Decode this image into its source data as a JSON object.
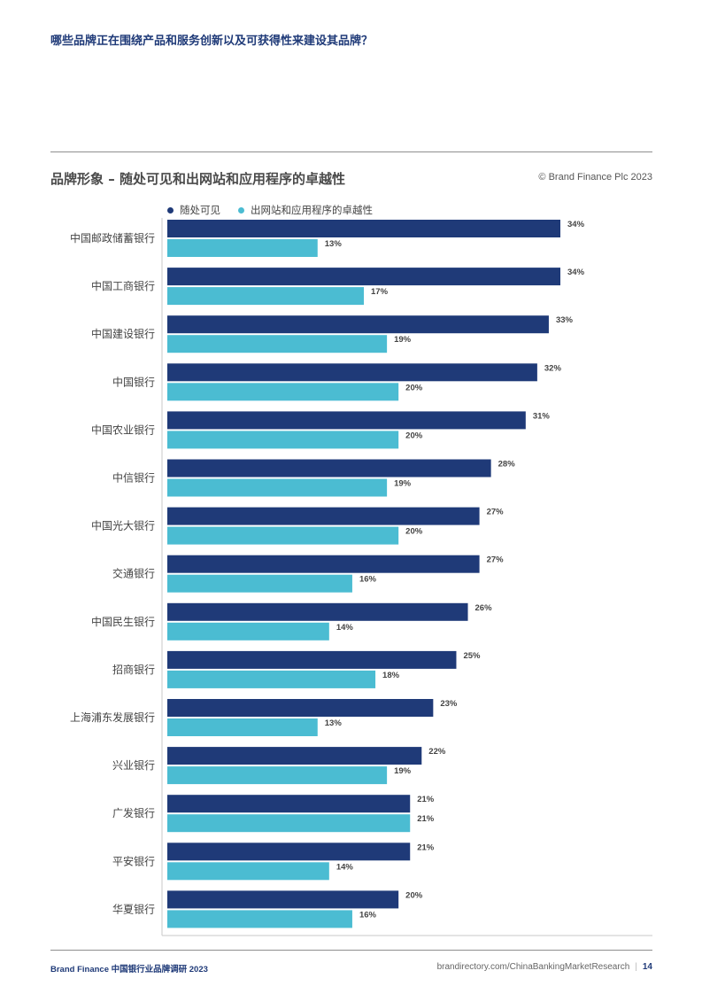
{
  "page": {
    "question": "哪些品牌正在围绕产品和服务创新以及可获得性来建设其品牌？",
    "footer_brand": "Brand Finance 中国银行业品牌调研 2023",
    "footer_url": "brandirectory.com/ChinaBankingMarketResearch",
    "page_number": "14"
  },
  "chart_header": {
    "title": "品牌形象 – 随处可见和出网站和应用程序的卓越性",
    "copyright": "© Brand Finance Plc 2023"
  },
  "colors": {
    "series1": "#1f3a78",
    "series2": "#4bbcd2",
    "axis": "#c8c8c8"
  },
  "chart_data": {
    "type": "bar",
    "orientation": "horizontal",
    "unit": "%",
    "legend_position": "top-left",
    "xlim": [
      0,
      35
    ],
    "categories": [
      "中国邮政储蓄银行",
      "中国工商银行",
      "中国建设银行",
      "中国银行",
      "中国农业银行",
      "中信银行",
      "中国光大银行",
      "交通银行",
      "中国民生银行",
      "招商银行",
      "上海浦东发展银行",
      "兴业银行",
      "广发银行",
      "平安银行",
      "华夏银行"
    ],
    "series": [
      {
        "name": "随处可见",
        "values": [
          34,
          34,
          33,
          32,
          31,
          28,
          27,
          27,
          26,
          25,
          23,
          22,
          21,
          21,
          20
        ]
      },
      {
        "name": "出网站和应用程序的卓越性",
        "values": [
          13,
          17,
          19,
          20,
          20,
          19,
          20,
          16,
          14,
          18,
          13,
          19,
          21,
          14,
          16
        ]
      }
    ]
  }
}
